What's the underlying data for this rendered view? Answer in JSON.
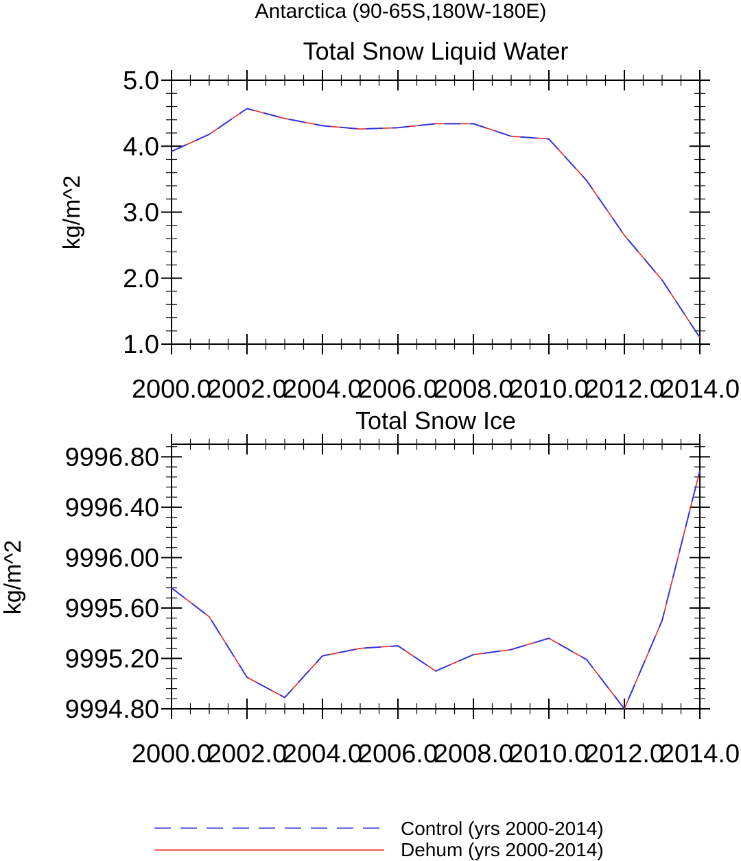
{
  "main_title": "Antarctica (90-65S,180W-180E)",
  "legend": [
    {
      "label": "Control (yrs 2000-2014)",
      "color": "#3333dd",
      "style": "dashed"
    },
    {
      "label": "Dehum (yrs 2000-2014)",
      "color": "#ee2222",
      "style": "solid"
    }
  ],
  "chart_data": [
    {
      "type": "line",
      "title": "Total Snow Liquid Water",
      "xlabel": "",
      "ylabel": "kg/m^2",
      "xlim": [
        2000,
        2014
      ],
      "ylim": [
        1.0,
        5.0
      ],
      "x_tick_labels": [
        "2000.0",
        "2002.0",
        "2004.0",
        "2006.0",
        "2008.0",
        "2010.0",
        "2012.0",
        "2014.0"
      ],
      "y_tick_labels": [
        "1.0",
        "2.0",
        "3.0",
        "4.0",
        "5.0"
      ],
      "x": [
        2000,
        2001,
        2002,
        2003,
        2004,
        2005,
        2006,
        2007,
        2008,
        2009,
        2010,
        2011,
        2012,
        2013,
        2014
      ],
      "series": [
        {
          "name": "Control (yrs 2000-2014)",
          "values": [
            3.92,
            4.18,
            4.57,
            4.42,
            4.31,
            4.26,
            4.28,
            4.34,
            4.34,
            4.15,
            4.11,
            3.48,
            2.65,
            1.97,
            1.1
          ]
        },
        {
          "name": "Dehum (yrs 2000-2014)",
          "values": [
            3.92,
            4.18,
            4.57,
            4.42,
            4.31,
            4.26,
            4.28,
            4.34,
            4.34,
            4.15,
            4.11,
            3.48,
            2.65,
            1.97,
            1.1
          ]
        }
      ],
      "grid": false
    },
    {
      "type": "line",
      "title": "Total Snow Ice",
      "xlabel": "",
      "ylabel": "kg/m^2",
      "xlim": [
        2000,
        2014
      ],
      "ylim": [
        9994.8,
        9996.9
      ],
      "x_tick_labels": [
        "2000.0",
        "2002.0",
        "2004.0",
        "2006.0",
        "2008.0",
        "2010.0",
        "2012.0",
        "2014.0"
      ],
      "y_tick_labels": [
        "9994.80",
        "9995.20",
        "9995.60",
        "9996.00",
        "9996.40",
        "9996.80"
      ],
      "x": [
        2000,
        2001,
        2002,
        2003,
        2004,
        2005,
        2006,
        2007,
        2008,
        2009,
        2010,
        2011,
        2012,
        2013,
        2014
      ],
      "series": [
        {
          "name": "Control (yrs 2000-2014)",
          "values": [
            9995.76,
            9995.53,
            9995.05,
            9994.89,
            9995.22,
            9995.28,
            9995.3,
            9995.1,
            9995.23,
            9995.27,
            9995.36,
            9995.19,
            9994.8,
            9995.5,
            9996.69
          ]
        },
        {
          "name": "Dehum (yrs 2000-2014)",
          "values": [
            9995.76,
            9995.53,
            9995.05,
            9994.89,
            9995.22,
            9995.28,
            9995.3,
            9995.1,
            9995.23,
            9995.27,
            9995.36,
            9995.19,
            9994.8,
            9995.5,
            9996.69
          ]
        }
      ],
      "grid": false
    }
  ]
}
